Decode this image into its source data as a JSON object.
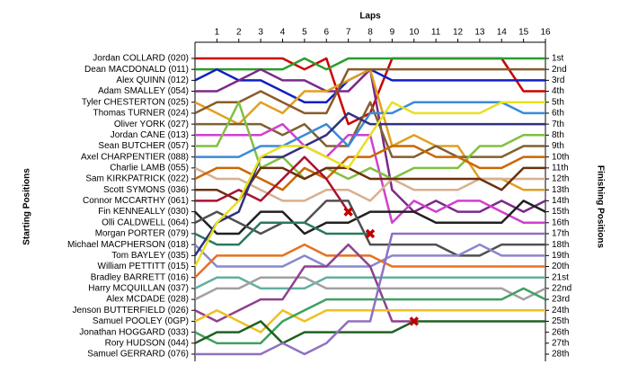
{
  "chart_data": {
    "type": "lap-chart",
    "x_label": "Laps",
    "y_label": "Starting Positions",
    "y2_label": "Finishing Positions",
    "x": [
      0,
      1,
      2,
      3,
      4,
      5,
      6,
      7,
      8,
      9,
      10,
      11,
      12,
      13,
      14,
      15,
      16
    ],
    "xlim": [
      0,
      16
    ],
    "xticks": [
      1,
      2,
      3,
      4,
      5,
      6,
      7,
      8,
      9,
      10,
      11,
      12,
      13,
      14,
      15,
      16
    ],
    "ylim": [
      28,
      1
    ],
    "y2lim": [
      28,
      1
    ],
    "y2ticks": [
      {
        "value": 1,
        "label": "1st"
      },
      {
        "value": 2,
        "label": "2nd"
      },
      {
        "value": 3,
        "label": "3rd"
      },
      {
        "value": 4,
        "label": "4th"
      },
      {
        "value": 5,
        "label": "5th"
      },
      {
        "value": 6,
        "label": "6th"
      },
      {
        "value": 7,
        "label": "7th"
      },
      {
        "value": 8,
        "label": "8th"
      },
      {
        "value": 9,
        "label": "9th"
      },
      {
        "value": 10,
        "label": "10th"
      },
      {
        "value": 11,
        "label": "11th"
      },
      {
        "value": 12,
        "label": "12th"
      },
      {
        "value": 13,
        "label": "13th"
      },
      {
        "value": 14,
        "label": "14th"
      },
      {
        "value": 15,
        "label": "15th"
      },
      {
        "value": 16,
        "label": "16th"
      },
      {
        "value": 17,
        "label": "17th"
      },
      {
        "value": 18,
        "label": "18th"
      },
      {
        "value": 19,
        "label": "19th"
      },
      {
        "value": 20,
        "label": "20th"
      },
      {
        "value": 21,
        "label": "21st"
      },
      {
        "value": 22,
        "label": "22nd"
      },
      {
        "value": 23,
        "label": "23rd"
      },
      {
        "value": 24,
        "label": "24th"
      },
      {
        "value": 25,
        "label": "25th"
      },
      {
        "value": 26,
        "label": "26th"
      },
      {
        "value": 27,
        "label": "27th"
      },
      {
        "value": 28,
        "label": "28th"
      }
    ],
    "series": [
      {
        "name": "Jordan COLLARD (020)",
        "color": "#cc0000",
        "values": [
          1,
          1,
          1,
          1,
          1,
          2,
          1,
          7,
          6,
          1,
          1,
          1,
          1,
          1,
          1,
          4,
          4
        ]
      },
      {
        "name": "Dean MACDONALD (011)",
        "color": "#2a9d2a",
        "values": [
          2,
          2,
          2,
          2,
          2,
          1,
          2,
          1,
          1,
          1,
          1,
          1,
          1,
          1,
          1,
          1,
          1
        ]
      },
      {
        "name": "Alex QUINN (012)",
        "color": "#1020c0",
        "values": [
          3,
          2,
          3,
          3,
          4,
          5,
          5,
          3,
          2,
          3,
          3,
          3,
          3,
          3,
          3,
          3,
          3
        ]
      },
      {
        "name": "Adam SMALLEY (054)",
        "color": "#7a2a8a",
        "values": [
          4,
          4,
          3,
          2,
          3,
          3,
          4,
          4,
          2,
          13,
          15,
          14,
          15,
          15,
          14,
          15,
          14
        ]
      },
      {
        "name": "Tyler CHESTERTON (025)",
        "color": "#e0a020",
        "values": [
          5,
          6,
          7,
          5,
          6,
          4,
          4,
          3,
          2,
          9,
          8,
          9,
          9,
          12,
          12,
          13,
          13
        ]
      },
      {
        "name": "Thomas TURNER (024)",
        "color": "#8b5a2b",
        "values": [
          6,
          5,
          5,
          4,
          5,
          6,
          6,
          2,
          2,
          2,
          2,
          2,
          2,
          2,
          2,
          2,
          2
        ]
      },
      {
        "name": "Oliver YORK (027)",
        "color": "#806030",
        "values": [
          7,
          7,
          7,
          7,
          8,
          7,
          9,
          9,
          5,
          10,
          10,
          9,
          10,
          10,
          10,
          9,
          9
        ]
      },
      {
        "name": "Jordan CANE (013)",
        "color": "#d040d0",
        "values": [
          8,
          8,
          8,
          8,
          7,
          9,
          10,
          8,
          8,
          16,
          14,
          15,
          14,
          14,
          15,
          16,
          16
        ]
      },
      {
        "name": "Sean BUTCHER (057)",
        "color": "#80c040",
        "values": [
          9,
          9,
          5,
          11,
          10,
          12,
          11,
          12,
          11,
          12,
          11,
          11,
          11,
          9,
          9,
          8,
          8
        ]
      },
      {
        "name": "Axel CHARPENTIER (088)",
        "color": "#3a8ad8",
        "values": [
          10,
          10,
          10,
          9,
          9,
          8,
          7,
          9,
          6,
          6,
          5,
          5,
          5,
          5,
          5,
          6,
          6
        ]
      },
      {
        "name": "Charlie LAMB (055)",
        "color": "#d8b090",
        "values": [
          11,
          12,
          12,
          13,
          14,
          14,
          13,
          13,
          14,
          12,
          13,
          13,
          13,
          12,
          12,
          12,
          12
        ]
      },
      {
        "name": "Sam KIRKPATRICK (022)",
        "color": "#cc6600",
        "values": [
          12,
          11,
          11,
          12,
          13,
          11,
          12,
          10,
          10,
          9,
          9,
          10,
          10,
          11,
          11,
          10,
          10
        ]
      },
      {
        "name": "Scott SYMONS (036)",
        "color": "#6b3010",
        "values": [
          13,
          13,
          14,
          11,
          11,
          12,
          11,
          11,
          12,
          12,
          12,
          12,
          12,
          12,
          13,
          11,
          11
        ]
      },
      {
        "name": "Connor MCCARTHY (061)",
        "color": "#aa1030",
        "values": [
          14,
          14,
          13,
          14,
          12,
          10,
          12,
          15,
          null,
          null,
          null,
          null,
          null,
          null,
          null,
          null,
          null
        ]
      },
      {
        "name": "Fin KENNEALLY (030)",
        "color": "#202020",
        "values": [
          15,
          17,
          17,
          15,
          15,
          17,
          16,
          16,
          15,
          15,
          15,
          16,
          16,
          16,
          16,
          14,
          15
        ]
      },
      {
        "name": "Olli CALDWELL (064)",
        "color": "#505050",
        "values": [
          16,
          15,
          16,
          17,
          16,
          16,
          14,
          14,
          18,
          18,
          18,
          18,
          19,
          19,
          18,
          18,
          18
        ]
      },
      {
        "name": "Morgan PORTER (079)",
        "color": "#2a7a5a",
        "values": [
          17,
          18,
          18,
          16,
          16,
          16,
          17,
          17,
          17,
          null,
          null,
          null,
          null,
          null,
          null,
          null,
          null
        ]
      },
      {
        "name": "Michael MACPHERSON (018)",
        "color": "#8888cc",
        "values": [
          18,
          20,
          20,
          20,
          20,
          19,
          20,
          20,
          20,
          19,
          19,
          19,
          19,
          18,
          19,
          19,
          19
        ]
      },
      {
        "name": "Tom BAYLEY (035)",
        "color": "#303080",
        "values": [
          19,
          16,
          15,
          10,
          10,
          9,
          8,
          6,
          7,
          7,
          7,
          7,
          7,
          7,
          7,
          7,
          7
        ]
      },
      {
        "name": "William PETTITT (015)",
        "color": "#e8e020",
        "values": [
          20,
          16,
          14,
          10,
          9,
          9,
          10,
          11,
          8,
          5,
          6,
          6,
          6,
          6,
          5,
          5,
          5
        ]
      },
      {
        "name": "Bradley BARRETT (016)",
        "color": "#e87020",
        "values": [
          21,
          19,
          19,
          19,
          19,
          18,
          19,
          19,
          19,
          20,
          20,
          20,
          20,
          20,
          20,
          20,
          20
        ]
      },
      {
        "name": "Harry MCQUILLAN (037)",
        "color": "#60b0a0",
        "values": [
          22,
          21,
          21,
          22,
          22,
          22,
          21,
          21,
          21,
          21,
          21,
          21,
          21,
          21,
          21,
          21,
          21
        ]
      },
      {
        "name": "Alex MCDADE (028)",
        "color": "#a0a0a0",
        "values": [
          23,
          22,
          22,
          21,
          21,
          21,
          22,
          22,
          22,
          22,
          22,
          22,
          22,
          22,
          22,
          23,
          22
        ]
      },
      {
        "name": "Jenson BUTTERFIELD (026)",
        "color": "#904090",
        "values": [
          24,
          25,
          24,
          23,
          23,
          20,
          20,
          18,
          20,
          25,
          25,
          null,
          null,
          null,
          null,
          null,
          null
        ]
      },
      {
        "name": "Samuel POOLEY (0GP)",
        "color": "#f0c020",
        "values": [
          25,
          24,
          25,
          26,
          24,
          25,
          24,
          24,
          24,
          24,
          24,
          24,
          24,
          24,
          24,
          24,
          24
        ]
      },
      {
        "name": "Jonathan HOGGARD (033)",
        "color": "#40a060",
        "values": [
          26,
          27,
          27,
          27,
          25,
          24,
          23,
          23,
          23,
          23,
          23,
          23,
          23,
          23,
          23,
          22,
          23
        ]
      },
      {
        "name": "Rory HUDSON (044)",
        "color": "#206020",
        "values": [
          27,
          26,
          26,
          25,
          27,
          26,
          26,
          26,
          26,
          26,
          25,
          25,
          25,
          25,
          25,
          25,
          25
        ]
      },
      {
        "name": "Samuel GERRARD (076)",
        "color": "#9070c0",
        "values": [
          28,
          28,
          28,
          28,
          27,
          28,
          27,
          25,
          25,
          17,
          17,
          17,
          17,
          17,
          17,
          17,
          17
        ]
      }
    ]
  }
}
